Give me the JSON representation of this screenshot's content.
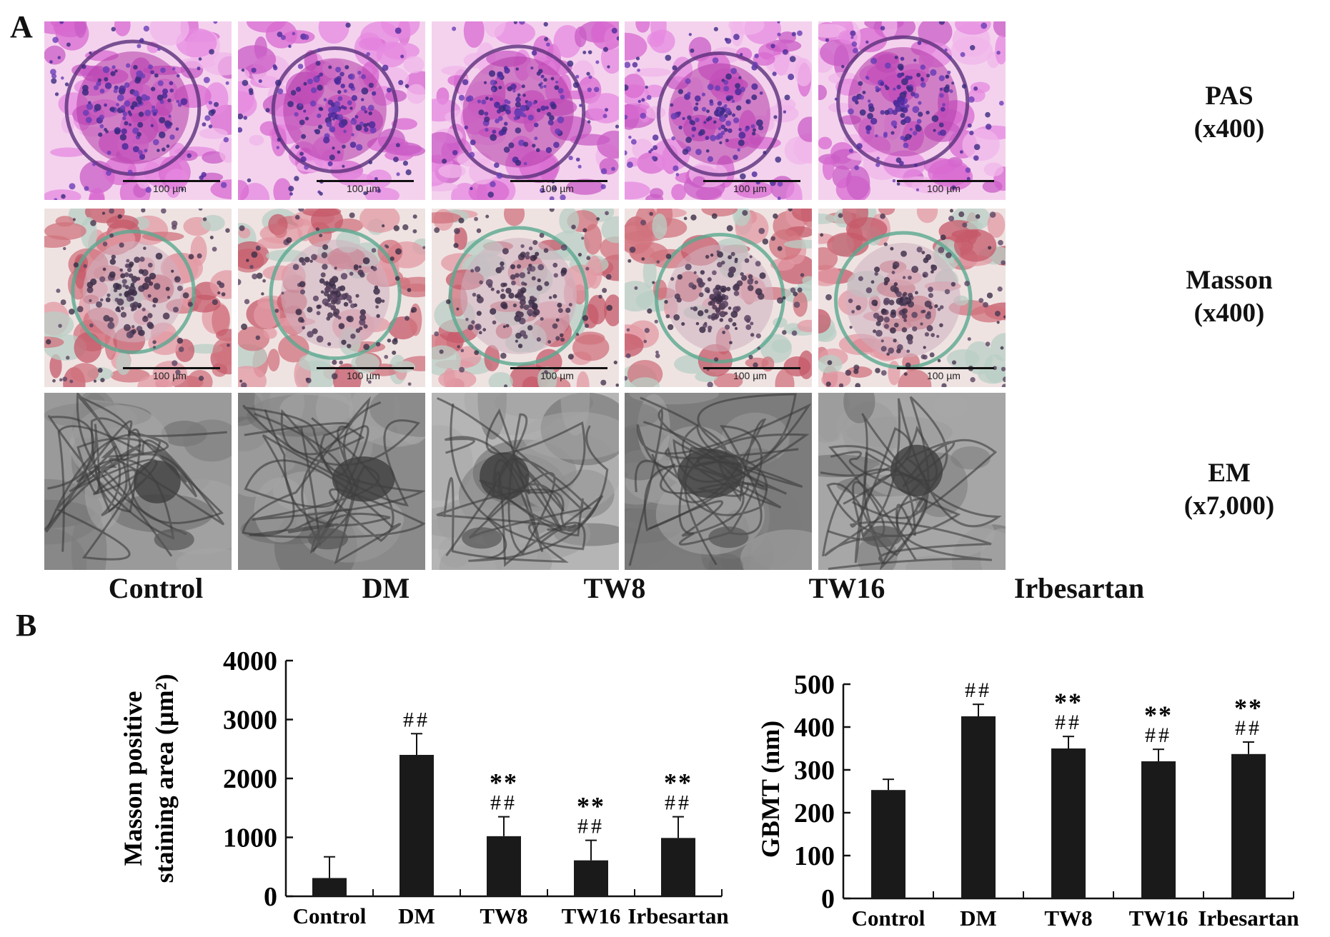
{
  "panel_a": {
    "letter": "A",
    "columns": [
      "Control",
      "DM",
      "TW8",
      "TW16",
      "Irbesartan"
    ],
    "rows": [
      {
        "stain": "PAS",
        "mag": "(x400)",
        "scale": "100 µm",
        "type": "pas"
      },
      {
        "stain": "Masson",
        "mag": "(x400)",
        "scale": "100 µm",
        "type": "masson"
      },
      {
        "stain": "EM",
        "mag": "(x7,000)",
        "scale": "",
        "type": "em"
      }
    ]
  },
  "panel_b": {
    "letter": "B"
  },
  "chart_data": [
    {
      "type": "bar",
      "categories": [
        "Control",
        "DM",
        "TW8",
        "TW16",
        "Irbesartan"
      ],
      "values": [
        310,
        2400,
        1020,
        610,
        990
      ],
      "errors": [
        360,
        360,
        330,
        340,
        360
      ],
      "annotations_hash": [
        "",
        "##",
        "##",
        "##",
        "##"
      ],
      "annotations_star": [
        "",
        "",
        "**",
        "**",
        "**"
      ],
      "ylabel_line1": "Masson positive",
      "ylabel_line2": "staining area (µm²)",
      "ylim": [
        0,
        4000
      ],
      "yticks": [
        0,
        1000,
        2000,
        3000,
        4000
      ],
      "bar_color": "#1a1a1a"
    },
    {
      "type": "bar",
      "categories": [
        "Control",
        "DM",
        "TW8",
        "TW16",
        "Irbesartan"
      ],
      "values": [
        253,
        425,
        350,
        320,
        337
      ],
      "errors": [
        25,
        28,
        28,
        28,
        28
      ],
      "annotations_hash": [
        "",
        "##",
        "##",
        "##",
        "##"
      ],
      "annotations_star": [
        "",
        "",
        "**",
        "**",
        "**"
      ],
      "ylabel": "GBMT (nm)",
      "ylim": [
        0,
        500
      ],
      "yticks": [
        0,
        100,
        200,
        300,
        400,
        500
      ],
      "bar_color": "#1a1a1a"
    }
  ]
}
